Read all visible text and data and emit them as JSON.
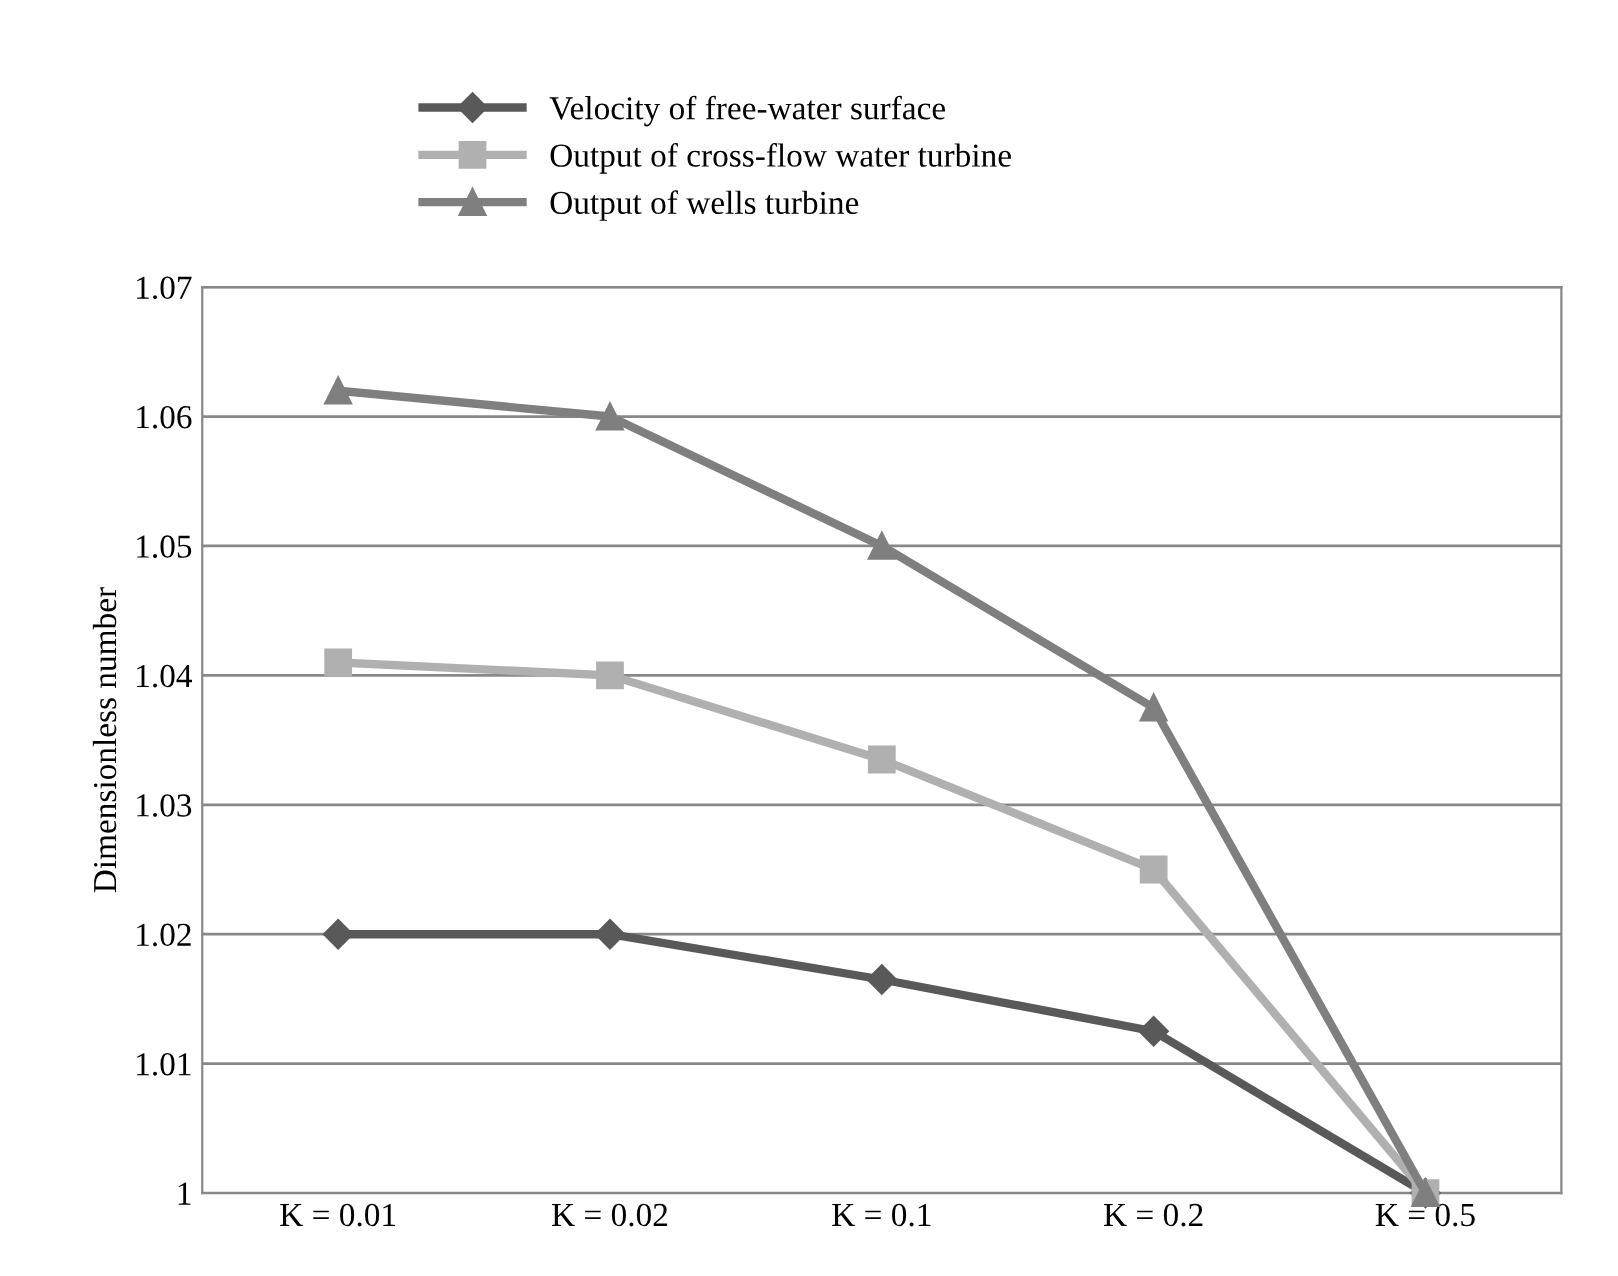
{
  "chart_data": {
    "type": "line",
    "ylabel": "Dimensionless number",
    "categories": [
      "K = 0.01",
      "K = 0.02",
      "K = 0.1",
      "K = 0.2",
      "K = 0.5"
    ],
    "series": [
      {
        "name": "Velocity of free-water surface",
        "color": "#595959",
        "marker": "diamond",
        "values": [
          1.02,
          1.02,
          1.0165,
          1.0125,
          1.0
        ]
      },
      {
        "name": "Output of cross-flow water turbine",
        "color": "#b0b0b0",
        "marker": "square",
        "values": [
          1.041,
          1.04,
          1.0335,
          1.025,
          1.0
        ]
      },
      {
        "name": "Output of wells turbine",
        "color": "#7f7f7f",
        "marker": "triangle",
        "values": [
          1.062,
          1.06,
          1.05,
          1.0375,
          1.0
        ]
      }
    ],
    "ylim": [
      1,
      1.07
    ],
    "yticks": [
      1,
      1.01,
      1.02,
      1.03,
      1.04,
      1.05,
      1.06,
      1.07
    ],
    "grid": "y",
    "legend": "top",
    "line_style": "solid"
  }
}
